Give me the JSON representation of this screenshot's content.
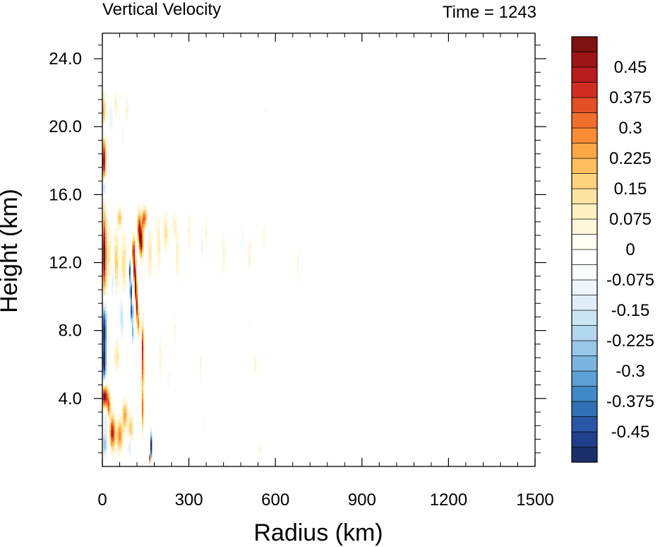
{
  "chart_data": {
    "type": "heatmap",
    "title": "Vertical Velocity",
    "time_label": "Time = 1243",
    "xlabel": "Radius (km)",
    "ylabel": "Height (km)",
    "xlim": [
      0,
      1500
    ],
    "ylim": [
      0,
      25.5
    ],
    "x_ticks": [
      {
        "value": 0,
        "label": "0"
      },
      {
        "value": 300,
        "label": "300"
      },
      {
        "value": 600,
        "label": "600"
      },
      {
        "value": 900,
        "label": "900"
      },
      {
        "value": 1200,
        "label": "1200"
      },
      {
        "value": 1500,
        "label": "1500"
      }
    ],
    "y_ticks": [
      {
        "value": 4,
        "label": "4.0"
      },
      {
        "value": 8,
        "label": "8.0"
      },
      {
        "value": 12,
        "label": "12.0"
      },
      {
        "value": 16,
        "label": "16.0"
      },
      {
        "value": 20,
        "label": "20.0"
      },
      {
        "value": 24,
        "label": "24.0"
      }
    ],
    "colorbar": {
      "min": -0.525,
      "max": 0.525,
      "step": 0.0375,
      "labels": [
        {
          "value": 0.45,
          "label": "0.45"
        },
        {
          "value": 0.375,
          "label": "0.375"
        },
        {
          "value": 0.3,
          "label": "0.3"
        },
        {
          "value": 0.225,
          "label": "0.225"
        },
        {
          "value": 0.15,
          "label": "0.15"
        },
        {
          "value": 0.075,
          "label": "0.075"
        },
        {
          "value": 0,
          "label": "0"
        },
        {
          "value": -0.075,
          "label": "-0.075"
        },
        {
          "value": -0.15,
          "label": "-0.15"
        },
        {
          "value": -0.225,
          "label": "-0.225"
        },
        {
          "value": -0.3,
          "label": "-0.3"
        },
        {
          "value": -0.375,
          "label": "-0.375"
        },
        {
          "value": -0.45,
          "label": "-0.45"
        }
      ],
      "colors": [
        "#1b2f6b",
        "#203f8c",
        "#2957a5",
        "#3371b6",
        "#4189c6",
        "#5da0d3",
        "#7ab4de",
        "#98c7e7",
        "#b3d7ee",
        "#cbe4f3",
        "#dfeef8",
        "#eef6fb",
        "#f9fcfe",
        "#ffffff",
        "#fffdf4",
        "#fff7dc",
        "#fef0c0",
        "#fde3a1",
        "#fdd380",
        "#fdbf5f",
        "#fca745",
        "#f98c35",
        "#f06f2c",
        "#e34f26",
        "#d12e22",
        "#b81c1f",
        "#9c1517",
        "#7e1111"
      ]
    },
    "features": [
      {
        "r": 5,
        "z": 18,
        "w": 0.48,
        "dr": 7,
        "dz": 1.3
      },
      {
        "r": 4,
        "z": 21,
        "w": 0.25,
        "dr": 6,
        "dz": 0.8
      },
      {
        "r": 6,
        "z": 16.5,
        "w": -0.3,
        "dr": 6,
        "dz": 0.6
      },
      {
        "r": 4,
        "z": 19.7,
        "w": -0.15,
        "dr": 6,
        "dz": 0.4
      },
      {
        "r": 6,
        "z": 12.5,
        "w": 0.52,
        "dr": 7,
        "dz": 2.3
      },
      {
        "r": 22,
        "z": 12.5,
        "w": 0.12,
        "dr": 9,
        "dz": 1.8
      },
      {
        "r": 6,
        "z": 8,
        "w": -0.52,
        "dr": 9,
        "dz": 1.6
      },
      {
        "r": 6,
        "z": 6,
        "w": -0.45,
        "dr": 7,
        "dz": 0.9
      },
      {
        "r": 8,
        "z": 4.1,
        "w": 0.5,
        "dr": 12,
        "dz": 0.6
      },
      {
        "r": 8,
        "z": 1.3,
        "w": -0.25,
        "dr": 10,
        "dz": 0.7
      },
      {
        "r": 12,
        "z": 2.7,
        "w": -0.15,
        "dr": 8,
        "dz": 0.7
      },
      {
        "r": 35,
        "z": 2,
        "w": 0.45,
        "dr": 9,
        "dz": 0.9
      },
      {
        "r": 22,
        "z": 3.5,
        "w": 0.3,
        "dr": 6,
        "dz": 0.6
      },
      {
        "r": 60,
        "z": 1.8,
        "w": 0.3,
        "dr": 10,
        "dz": 0.8
      },
      {
        "r": 78,
        "z": 3,
        "w": 0.25,
        "dr": 9,
        "dz": 0.8
      },
      {
        "r": 98,
        "z": 2.2,
        "w": 0.2,
        "dr": 8,
        "dz": 0.8
      },
      {
        "r": 50,
        "z": 6.5,
        "w": 0.12,
        "dr": 10,
        "dz": 0.8
      },
      {
        "r": 95,
        "z": 1.2,
        "w": -0.18,
        "dr": 6,
        "dz": 0.6
      },
      {
        "r": 48,
        "z": 12,
        "w": 0.18,
        "dr": 9,
        "dz": 1.6
      },
      {
        "r": 75,
        "z": 12,
        "w": 0.15,
        "dr": 9,
        "dz": 1.5
      },
      {
        "r": 36,
        "z": 11,
        "w": -0.15,
        "dr": 6,
        "dz": 1.2
      },
      {
        "r": 65,
        "z": 9,
        "w": -0.12,
        "dr": 6,
        "dz": 1.2
      },
      {
        "r": 95,
        "z": 11.5,
        "w": -0.45,
        "dr": 4,
        "dz": 0.6
      },
      {
        "r": 99,
        "z": 10.3,
        "w": -0.5,
        "dr": 4,
        "dz": 0.6
      },
      {
        "r": 102,
        "z": 9.1,
        "w": -0.5,
        "dr": 4,
        "dz": 0.6
      },
      {
        "r": 106,
        "z": 7.9,
        "w": -0.3,
        "dr": 4,
        "dz": 0.6
      },
      {
        "r": 108,
        "z": 12.7,
        "w": 0.5,
        "dr": 4,
        "dz": 0.7
      },
      {
        "r": 112,
        "z": 11.6,
        "w": 0.55,
        "dr": 4,
        "dz": 0.7
      },
      {
        "r": 116,
        "z": 10.5,
        "w": 0.55,
        "dr": 4,
        "dz": 0.7
      },
      {
        "r": 120,
        "z": 9.4,
        "w": 0.45,
        "dr": 4,
        "dz": 0.7
      },
      {
        "r": 124,
        "z": 8.4,
        "w": 0.3,
        "dr": 4,
        "dz": 0.6
      },
      {
        "r": 128,
        "z": 14,
        "w": 0.45,
        "dr": 6,
        "dz": 0.9
      },
      {
        "r": 135,
        "z": 13.2,
        "w": 0.5,
        "dr": 6,
        "dz": 0.8
      },
      {
        "r": 142,
        "z": 14.5,
        "w": 0.35,
        "dr": 5,
        "dz": 0.6
      },
      {
        "r": 150,
        "z": 14.7,
        "w": 0.25,
        "dr": 5,
        "dz": 0.5
      },
      {
        "r": 140,
        "z": 7,
        "w": 0.42,
        "dr": 3.5,
        "dz": 1.3
      },
      {
        "r": 141,
        "z": 5.5,
        "w": 0.3,
        "dr": 3,
        "dz": 0.8
      },
      {
        "r": 140,
        "z": 3.5,
        "w": 0.35,
        "dr": 3,
        "dz": 1.2
      },
      {
        "r": 136,
        "z": 5,
        "w": -0.18,
        "dr": 3,
        "dz": 1.3
      },
      {
        "r": 168,
        "z": 1.2,
        "w": -0.55,
        "dr": 3,
        "dz": 0.8
      },
      {
        "r": 164,
        "z": 0.5,
        "w": 0.4,
        "dr": 3,
        "dz": 0.3
      },
      {
        "r": 60,
        "z": 14.6,
        "w": 0.2,
        "dr": 8,
        "dz": 0.5
      },
      {
        "r": 165,
        "z": 12.5,
        "w": 0.12,
        "dr": 8,
        "dz": 1.3
      },
      {
        "r": 195,
        "z": 13.2,
        "w": 0.1,
        "dr": 8,
        "dz": 1.5
      },
      {
        "r": 220,
        "z": 13.8,
        "w": 0.14,
        "dr": 7,
        "dz": 1.0
      },
      {
        "r": 250,
        "z": 14.2,
        "w": 0.1,
        "dr": 6,
        "dz": 0.8
      },
      {
        "r": 260,
        "z": 12.5,
        "w": 0.1,
        "dr": 5,
        "dz": 1.4
      },
      {
        "r": 300,
        "z": 13.8,
        "w": 0.06,
        "dr": 6,
        "dz": 1.2
      },
      {
        "r": 345,
        "z": 13,
        "w": -0.08,
        "dr": 5,
        "dz": 1.3
      },
      {
        "r": 360,
        "z": 13.8,
        "w": 0.08,
        "dr": 4,
        "dz": 0.8
      },
      {
        "r": 420,
        "z": 12.5,
        "w": 0.07,
        "dr": 5,
        "dz": 1.2
      },
      {
        "r": 485,
        "z": 13.3,
        "w": -0.06,
        "dr": 5,
        "dz": 1.1
      },
      {
        "r": 510,
        "z": 12.5,
        "w": 0.06,
        "dr": 4,
        "dz": 1.0
      },
      {
        "r": 560,
        "z": 13.5,
        "w": 0.05,
        "dr": 4,
        "dz": 0.8
      },
      {
        "r": 680,
        "z": 11.8,
        "w": 0.06,
        "dr": 3,
        "dz": 1.0
      },
      {
        "r": 30,
        "z": 20.5,
        "w": -0.12,
        "dr": 6,
        "dz": 1.0
      },
      {
        "r": 45,
        "z": 21.3,
        "w": 0.1,
        "dr": 6,
        "dz": 0.6
      },
      {
        "r": 85,
        "z": 21,
        "w": 0.08,
        "dr": 5,
        "dz": 0.7
      },
      {
        "r": 20,
        "z": 17.5,
        "w": -0.1,
        "dr": 6,
        "dz": 0.7
      },
      {
        "r": 70,
        "z": 19.5,
        "w": -0.06,
        "dr": 6,
        "dz": 0.8
      },
      {
        "r": 70,
        "z": 8.5,
        "w": -0.1,
        "dr": 6,
        "dz": 1.0
      },
      {
        "r": 200,
        "z": 6.5,
        "w": 0.06,
        "dr": 6,
        "dz": 1.3
      },
      {
        "r": 230,
        "z": 5,
        "w": -0.06,
        "dr": 5,
        "dz": 1.0
      },
      {
        "r": 250,
        "z": 8,
        "w": 0.05,
        "dr": 5,
        "dz": 1.0
      },
      {
        "r": 340,
        "z": 6,
        "w": 0.05,
        "dr": 4,
        "dz": 1.0
      },
      {
        "r": 350,
        "z": 2.5,
        "w": -0.05,
        "dr": 4,
        "dz": 0.8
      },
      {
        "r": 530,
        "z": 6,
        "w": 0.05,
        "dr": 4,
        "dz": 0.8
      },
      {
        "r": 545,
        "z": 1,
        "w": 0.05,
        "dr": 4,
        "dz": 0.4
      },
      {
        "r": 565,
        "z": 21,
        "w": -0.04,
        "dr": 5,
        "dz": 0.6
      },
      {
        "r": 510,
        "z": 8.5,
        "w": -0.04,
        "dr": 4,
        "dz": 0.8
      }
    ]
  }
}
